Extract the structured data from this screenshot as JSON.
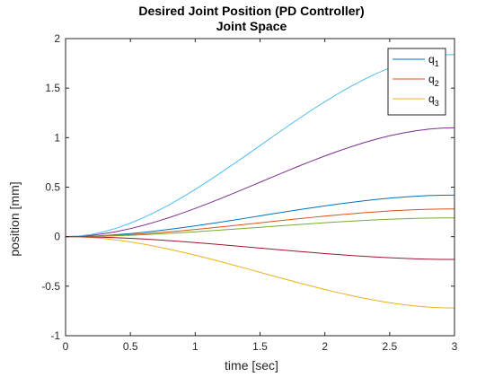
{
  "chart_data": {
    "type": "line",
    "title": "Desired Joint Position (PD Controller)",
    "subtitle": "Joint Space",
    "xlabel": "time [sec]",
    "ylabel": "position [mm]",
    "xlim": [
      0,
      3
    ],
    "ylim": [
      -1,
      2
    ],
    "xticks": [
      "0",
      "0.5",
      "1",
      "1.5",
      "2",
      "2.5",
      "3"
    ],
    "yticks": [
      "-1",
      "-0.5",
      "0",
      "0.5",
      "1",
      "1.5",
      "2"
    ],
    "grid": false,
    "legend_position": "top-right",
    "x": [
      0,
      0.1,
      0.2,
      0.3,
      0.4,
      0.5,
      0.6,
      0.7,
      0.8,
      0.9,
      1.0,
      1.1,
      1.2,
      1.3,
      1.4,
      1.5,
      1.6,
      1.7,
      1.8,
      1.9,
      2.0,
      2.1,
      2.2,
      2.3,
      2.4,
      2.5,
      2.6,
      2.7,
      2.8,
      2.9,
      3.0
    ],
    "series": [
      {
        "name": "q",
        "sub": "1",
        "color": "#0072BD",
        "final": 0.42
      },
      {
        "name": "q",
        "sub": "2",
        "color": "#D95319",
        "final": 0.28
      },
      {
        "name": "q",
        "sub": "3",
        "color": "#EDB120",
        "final": -0.72
      },
      {
        "color": "#7E2F8E",
        "final": 1.1
      },
      {
        "color": "#77AC30",
        "final": 0.19
      },
      {
        "color": "#4DBEEE",
        "final": 1.84
      },
      {
        "color": "#A2142F",
        "final": -0.23
      }
    ]
  }
}
